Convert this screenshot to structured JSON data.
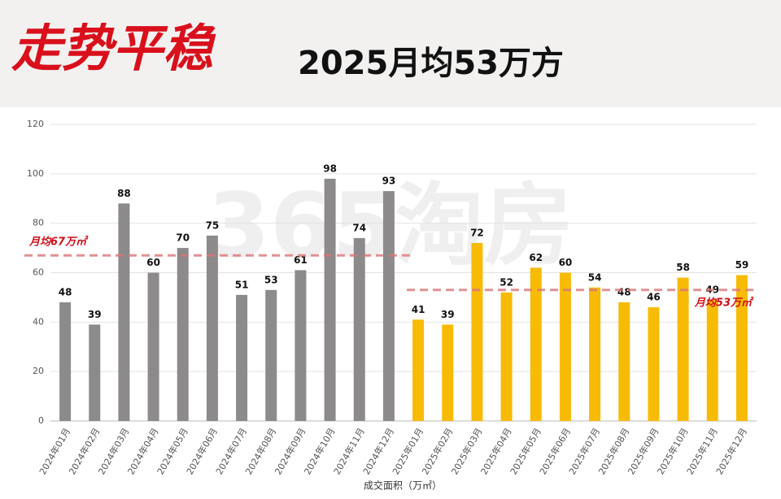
{
  "chart_data": {
    "type": "bar",
    "title": "走势平稳",
    "subtitle": "2025月均53万方",
    "watermark": "365淘房",
    "x_label": "成交面积（万㎡）",
    "categories": [
      "2024年01月",
      "2024年02月",
      "2024年03月",
      "2024年04月",
      "2024年05月",
      "2024年06月",
      "2024年07月",
      "2024年08月",
      "2024年09月",
      "2024年10月",
      "2024年11月",
      "2024年12月",
      "2025年01月",
      "2025年02月",
      "2025年03月",
      "2025年04月",
      "2025年05月",
      "2025年06月",
      "2025年07月",
      "2025年08月",
      "2025年09月",
      "2025年10月",
      "2025年11月",
      "2025年12月"
    ],
    "series": [
      {
        "color": "#8c8a8a",
        "average": 67,
        "average_label": "月均67万㎡",
        "values": [
          48,
          39,
          88,
          60,
          70,
          75,
          51,
          53,
          61,
          98,
          74,
          93,
          null,
          null,
          null,
          null,
          null,
          null,
          null,
          null,
          null,
          null,
          null,
          null
        ]
      },
      {
        "color": "#f7bb06",
        "average": 53,
        "average_label": "月均53万㎡",
        "values": [
          null,
          null,
          null,
          null,
          null,
          null,
          null,
          null,
          null,
          null,
          null,
          null,
          41,
          39,
          72,
          52,
          62,
          60,
          54,
          48,
          46,
          58,
          49,
          59
        ]
      }
    ],
    "ylim": [
      0,
      120
    ],
    "yticks": [
      0,
      20,
      40,
      60,
      80,
      100,
      120
    ],
    "grid": true
  }
}
